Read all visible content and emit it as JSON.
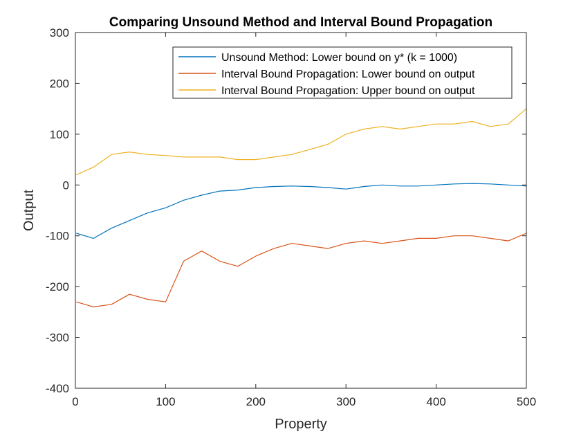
{
  "chart_data": {
    "type": "line",
    "title": "Comparing Unsound Method and Interval Bound Propagation",
    "xlabel": "Property",
    "ylabel": "Output",
    "xlim": [
      0,
      500
    ],
    "ylim": [
      -400,
      300
    ],
    "xticks": [
      "0",
      "100",
      "200",
      "300",
      "400",
      "500"
    ],
    "yticks": [
      "300",
      "200",
      "100",
      "0",
      "-100",
      "-200",
      "-300",
      "-400"
    ],
    "grid": false,
    "legend_position": "top-right",
    "series": [
      {
        "name": "Unsound Method: Lower bound on y* (k = 1000)",
        "color": "#0072bd",
        "x": [
          1,
          20,
          40,
          60,
          80,
          100,
          120,
          140,
          160,
          180,
          200,
          220,
          240,
          260,
          280,
          300,
          320,
          340,
          360,
          380,
          400,
          420,
          440,
          460,
          480,
          500
        ],
        "y": [
          -95,
          -105,
          -85,
          -70,
          -55,
          -45,
          -30,
          -20,
          -12,
          -10,
          -5,
          -3,
          -2,
          -3,
          -5,
          -8,
          -3,
          0,
          -2,
          -2,
          0,
          2,
          3,
          2,
          0,
          -2
        ]
      },
      {
        "name": "Interval Bound Propagation: Lower bound on output",
        "color": "#d95319",
        "x": [
          1,
          20,
          40,
          60,
          80,
          100,
          120,
          140,
          160,
          180,
          200,
          220,
          240,
          260,
          280,
          300,
          320,
          340,
          360,
          380,
          400,
          420,
          440,
          460,
          480,
          500
        ],
        "y": [
          -230,
          -240,
          -235,
          -215,
          -225,
          -230,
          -150,
          -130,
          -150,
          -160,
          -140,
          -125,
          -115,
          -120,
          -125,
          -115,
          -110,
          -115,
          -110,
          -105,
          -105,
          -100,
          -100,
          -105,
          -110,
          -95
        ]
      },
      {
        "name": "Interval Bound Propagation: Upper bound on output",
        "color": "#edb120",
        "x": [
          1,
          20,
          40,
          60,
          80,
          100,
          120,
          140,
          160,
          180,
          200,
          220,
          240,
          260,
          280,
          300,
          320,
          340,
          360,
          380,
          400,
          420,
          440,
          460,
          480,
          500
        ],
        "y": [
          20,
          35,
          60,
          65,
          60,
          58,
          55,
          55,
          55,
          50,
          50,
          55,
          60,
          70,
          80,
          100,
          110,
          115,
          110,
          115,
          120,
          120,
          125,
          115,
          120,
          150
        ]
      }
    ]
  }
}
